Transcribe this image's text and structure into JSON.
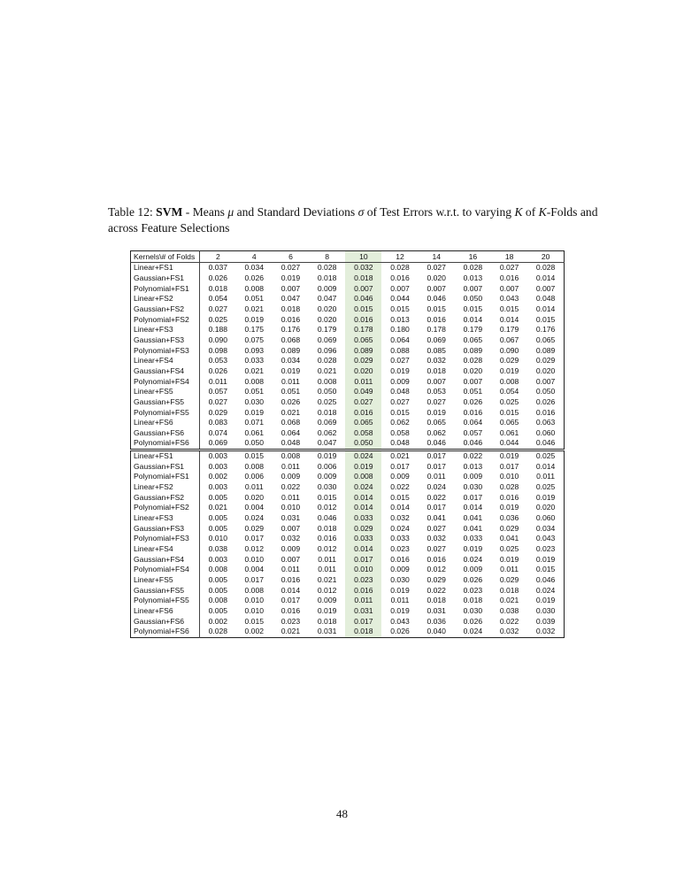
{
  "caption": {
    "prefix": "Table 12: ",
    "bold": "SVM",
    "part1": " - Means ",
    "mu": "μ",
    "part2": " and Standard Deviations ",
    "sigma": "σ",
    "part3": " of Test Errors w.r.t. to varying ",
    "k1": "K",
    "part4": " of ",
    "k2": "K",
    "part5": "-Folds and across Feature Selections"
  },
  "table": {
    "corner": "Kernels\\# of Folds",
    "columns": [
      "2",
      "4",
      "6",
      "8",
      "10",
      "12",
      "14",
      "16",
      "18",
      "20"
    ],
    "highlight_column": "10",
    "means": [
      {
        "label": "Linear+FS1",
        "values": [
          "0.037",
          "0.034",
          "0.027",
          "0.028",
          "0.032",
          "0.028",
          "0.027",
          "0.028",
          "0.027",
          "0.028"
        ]
      },
      {
        "label": "Gaussian+FS1",
        "values": [
          "0.026",
          "0.026",
          "0.019",
          "0.018",
          "0.018",
          "0.016",
          "0.020",
          "0.013",
          "0.016",
          "0.014"
        ]
      },
      {
        "label": "Polynomial+FS1",
        "values": [
          "0.018",
          "0.008",
          "0.007",
          "0.009",
          "0.007",
          "0.007",
          "0.007",
          "0.007",
          "0.007",
          "0.007"
        ]
      },
      {
        "label": "Linear+FS2",
        "values": [
          "0.054",
          "0.051",
          "0.047",
          "0.047",
          "0.046",
          "0.044",
          "0.046",
          "0.050",
          "0.043",
          "0.048"
        ]
      },
      {
        "label": "Gaussian+FS2",
        "values": [
          "0.027",
          "0.021",
          "0.018",
          "0.020",
          "0.015",
          "0.015",
          "0.015",
          "0.015",
          "0.015",
          "0.014"
        ]
      },
      {
        "label": "Polynomial+FS2",
        "values": [
          "0.025",
          "0.019",
          "0.016",
          "0.020",
          "0.016",
          "0.013",
          "0.016",
          "0.014",
          "0.014",
          "0.015"
        ]
      },
      {
        "label": "Linear+FS3",
        "values": [
          "0.188",
          "0.175",
          "0.176",
          "0.179",
          "0.178",
          "0.180",
          "0.178",
          "0.179",
          "0.179",
          "0.176"
        ]
      },
      {
        "label": "Gaussian+FS3",
        "values": [
          "0.090",
          "0.075",
          "0.068",
          "0.069",
          "0.065",
          "0.064",
          "0.069",
          "0.065",
          "0.067",
          "0.065"
        ]
      },
      {
        "label": "Polynomial+FS3",
        "values": [
          "0.098",
          "0.093",
          "0.089",
          "0.096",
          "0.089",
          "0.088",
          "0.085",
          "0.089",
          "0.090",
          "0.089"
        ]
      },
      {
        "label": "Linear+FS4",
        "values": [
          "0.053",
          "0.033",
          "0.034",
          "0.028",
          "0.029",
          "0.027",
          "0.032",
          "0.028",
          "0.029",
          "0.029"
        ]
      },
      {
        "label": "Gaussian+FS4",
        "values": [
          "0.026",
          "0.021",
          "0.019",
          "0.021",
          "0.020",
          "0.019",
          "0.018",
          "0.020",
          "0.019",
          "0.020"
        ]
      },
      {
        "label": "Polynomial+FS4",
        "values": [
          "0.011",
          "0.008",
          "0.011",
          "0.008",
          "0.011",
          "0.009",
          "0.007",
          "0.007",
          "0.008",
          "0.007"
        ]
      },
      {
        "label": "Linear+FS5",
        "values": [
          "0.057",
          "0.051",
          "0.051",
          "0.050",
          "0.049",
          "0.048",
          "0.053",
          "0.051",
          "0.054",
          "0.050"
        ]
      },
      {
        "label": "Gaussian+FS5",
        "values": [
          "0.027",
          "0.030",
          "0.026",
          "0.025",
          "0.027",
          "0.027",
          "0.027",
          "0.026",
          "0.025",
          "0.026"
        ]
      },
      {
        "label": "Polynomial+FS5",
        "values": [
          "0.029",
          "0.019",
          "0.021",
          "0.018",
          "0.016",
          "0.015",
          "0.019",
          "0.016",
          "0.015",
          "0.016"
        ]
      },
      {
        "label": "Linear+FS6",
        "values": [
          "0.083",
          "0.071",
          "0.068",
          "0.069",
          "0.065",
          "0.062",
          "0.065",
          "0.064",
          "0.065",
          "0.063"
        ]
      },
      {
        "label": "Gaussian+FS6",
        "values": [
          "0.074",
          "0.061",
          "0.064",
          "0.062",
          "0.058",
          "0.058",
          "0.062",
          "0.057",
          "0.061",
          "0.060"
        ]
      },
      {
        "label": "Polynomial+FS6",
        "values": [
          "0.069",
          "0.050",
          "0.048",
          "0.047",
          "0.050",
          "0.048",
          "0.046",
          "0.046",
          "0.044",
          "0.046"
        ]
      }
    ],
    "std_devs": [
      {
        "label": "Linear+FS1",
        "values": [
          "0.003",
          "0.015",
          "0.008",
          "0.019",
          "0.024",
          "0.021",
          "0.017",
          "0.022",
          "0.019",
          "0.025"
        ]
      },
      {
        "label": "Gaussian+FS1",
        "values": [
          "0.003",
          "0.008",
          "0.011",
          "0.006",
          "0.019",
          "0.017",
          "0.017",
          "0.013",
          "0.017",
          "0.014"
        ]
      },
      {
        "label": "Polynomial+FS1",
        "values": [
          "0.002",
          "0.006",
          "0.009",
          "0.009",
          "0.008",
          "0.009",
          "0.011",
          "0.009",
          "0.010",
          "0.011"
        ]
      },
      {
        "label": "Linear+FS2",
        "values": [
          "0.003",
          "0.011",
          "0.022",
          "0.030",
          "0.024",
          "0.022",
          "0.024",
          "0.030",
          "0.028",
          "0.025"
        ]
      },
      {
        "label": "Gaussian+FS2",
        "values": [
          "0.005",
          "0.020",
          "0.011",
          "0.015",
          "0.014",
          "0.015",
          "0.022",
          "0.017",
          "0.016",
          "0.019"
        ]
      },
      {
        "label": "Polynomial+FS2",
        "values": [
          "0.021",
          "0.004",
          "0.010",
          "0.012",
          "0.014",
          "0.014",
          "0.017",
          "0.014",
          "0.019",
          "0.020"
        ]
      },
      {
        "label": "Linear+FS3",
        "values": [
          "0.005",
          "0.024",
          "0.031",
          "0.046",
          "0.033",
          "0.032",
          "0.041",
          "0.041",
          "0.036",
          "0.060"
        ]
      },
      {
        "label": "Gaussian+FS3",
        "values": [
          "0.005",
          "0.029",
          "0.007",
          "0.018",
          "0.029",
          "0.024",
          "0.027",
          "0.041",
          "0.029",
          "0.034"
        ]
      },
      {
        "label": "Polynomial+FS3",
        "values": [
          "0.010",
          "0.017",
          "0.032",
          "0.016",
          "0.033",
          "0.033",
          "0.032",
          "0.033",
          "0.041",
          "0.043"
        ]
      },
      {
        "label": "Linear+FS4",
        "values": [
          "0.038",
          "0.012",
          "0.009",
          "0.012",
          "0.014",
          "0.023",
          "0.027",
          "0.019",
          "0.025",
          "0.023"
        ]
      },
      {
        "label": "Gaussian+FS4",
        "values": [
          "0.003",
          "0.010",
          "0.007",
          "0.011",
          "0.017",
          "0.016",
          "0.016",
          "0.024",
          "0.019",
          "0.019"
        ]
      },
      {
        "label": "Polynomial+FS4",
        "values": [
          "0.008",
          "0.004",
          "0.011",
          "0.011",
          "0.010",
          "0.009",
          "0.012",
          "0.009",
          "0.011",
          "0.015"
        ]
      },
      {
        "label": "Linear+FS5",
        "values": [
          "0.005",
          "0.017",
          "0.016",
          "0.021",
          "0.023",
          "0.030",
          "0.029",
          "0.026",
          "0.029",
          "0.046"
        ]
      },
      {
        "label": "Gaussian+FS5",
        "values": [
          "0.005",
          "0.008",
          "0.014",
          "0.012",
          "0.016",
          "0.019",
          "0.022",
          "0.023",
          "0.018",
          "0.024"
        ]
      },
      {
        "label": "Polynomial+FS5",
        "values": [
          "0.008",
          "0.010",
          "0.017",
          "0.009",
          "0.011",
          "0.011",
          "0.018",
          "0.018",
          "0.021",
          "0.019"
        ]
      },
      {
        "label": "Linear+FS6",
        "values": [
          "0.005",
          "0.010",
          "0.016",
          "0.019",
          "0.031",
          "0.019",
          "0.031",
          "0.030",
          "0.038",
          "0.030"
        ]
      },
      {
        "label": "Gaussian+FS6",
        "values": [
          "0.002",
          "0.015",
          "0.023",
          "0.018",
          "0.017",
          "0.043",
          "0.036",
          "0.026",
          "0.022",
          "0.039"
        ]
      },
      {
        "label": "Polynomial+FS6",
        "values": [
          "0.028",
          "0.002",
          "0.021",
          "0.031",
          "0.018",
          "0.026",
          "0.040",
          "0.024",
          "0.032",
          "0.032"
        ]
      }
    ]
  },
  "page_number": "48"
}
